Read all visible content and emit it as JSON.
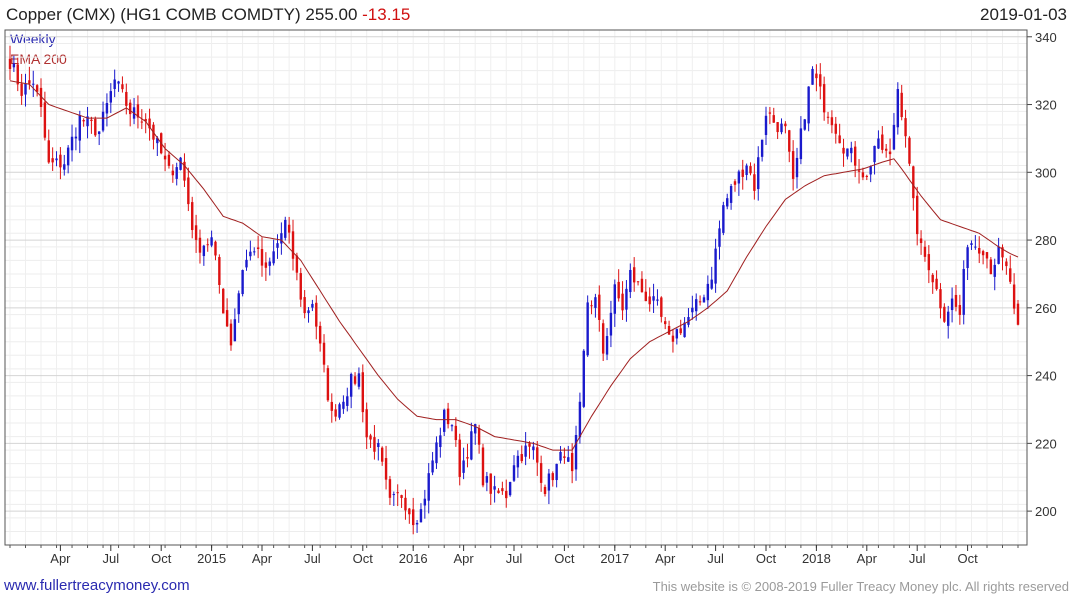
{
  "header": {
    "title": "Copper (CMX) (HG1 COMB COMDTY) 255.00",
    "change": "-13.15",
    "date": "2019-01-03"
  },
  "legend": {
    "weekly": "Weekly",
    "ema": "EMA 200"
  },
  "footer": {
    "site": "www.fullertreacymoney.com",
    "copyright": "This website is © 2008-2019 Fuller Treacy Money plc. All rights reserved"
  },
  "colors": {
    "up": "#1a1acc",
    "down": "#dd1111",
    "ema": "#a02020",
    "grid": "#e2e2e2"
  },
  "chart_data": {
    "type": "candlestick",
    "title": "Copper (CMX) (HG1 COMB COMDTY)",
    "last_value": 255.0,
    "change": -13.15,
    "period": "Weekly",
    "ylim": [
      190,
      342
    ],
    "y_ticks": [
      200,
      220,
      240,
      260,
      280,
      300,
      320,
      340
    ],
    "x_ticks": [
      {
        "label": "Apr",
        "week": 13
      },
      {
        "label": "Jul",
        "week": 26
      },
      {
        "label": "Oct",
        "week": 39
      },
      {
        "label": "2015",
        "week": 52
      },
      {
        "label": "Apr",
        "week": 65
      },
      {
        "label": "Jul",
        "week": 78
      },
      {
        "label": "Oct",
        "week": 91
      },
      {
        "label": "2016",
        "week": 104
      },
      {
        "label": "Apr",
        "week": 117
      },
      {
        "label": "Jul",
        "week": 130
      },
      {
        "label": "Oct",
        "week": 143
      },
      {
        "label": "2017",
        "week": 156
      },
      {
        "label": "Apr",
        "week": 169
      },
      {
        "label": "Jul",
        "week": 182
      },
      {
        "label": "Oct",
        "week": 195
      },
      {
        "label": "2018",
        "week": 208
      },
      {
        "label": "Apr",
        "week": 221
      },
      {
        "label": "Jul",
        "week": 234
      },
      {
        "label": "Oct",
        "week": 247
      }
    ],
    "total_weeks": 261,
    "close_anchors": [
      [
        0,
        333
      ],
      [
        3,
        324
      ],
      [
        6,
        327
      ],
      [
        8,
        318
      ],
      [
        10,
        302
      ],
      [
        14,
        303
      ],
      [
        18,
        316
      ],
      [
        23,
        312
      ],
      [
        27,
        327
      ],
      [
        31,
        318
      ],
      [
        35,
        316
      ],
      [
        38,
        308
      ],
      [
        41,
        300
      ],
      [
        44,
        304
      ],
      [
        48,
        278
      ],
      [
        52,
        280
      ],
      [
        55,
        260
      ],
      [
        57,
        250
      ],
      [
        60,
        272
      ],
      [
        63,
        278
      ],
      [
        66,
        270
      ],
      [
        71,
        285
      ],
      [
        73,
        275
      ],
      [
        76,
        258
      ],
      [
        78,
        262
      ],
      [
        80,
        248
      ],
      [
        83,
        228
      ],
      [
        85,
        232
      ],
      [
        88,
        238
      ],
      [
        90,
        240
      ],
      [
        92,
        222
      ],
      [
        95,
        218
      ],
      [
        98,
        202
      ],
      [
        101,
        205
      ],
      [
        104,
        198
      ],
      [
        106,
        200
      ],
      [
        109,
        215
      ],
      [
        112,
        228
      ],
      [
        114,
        226
      ],
      [
        116,
        212
      ],
      [
        118,
        218
      ],
      [
        120,
        225
      ],
      [
        122,
        210
      ],
      [
        125,
        205
      ],
      [
        128,
        205
      ],
      [
        130,
        215
      ],
      [
        133,
        218
      ],
      [
        135,
        218
      ],
      [
        138,
        207
      ],
      [
        141,
        213
      ],
      [
        143,
        218
      ],
      [
        145,
        210
      ],
      [
        147,
        230
      ],
      [
        149,
        262
      ],
      [
        151,
        262
      ],
      [
        153,
        247
      ],
      [
        156,
        265
      ],
      [
        158,
        260
      ],
      [
        160,
        270
      ],
      [
        163,
        265
      ],
      [
        165,
        262
      ],
      [
        167,
        260
      ],
      [
        170,
        250
      ],
      [
        172,
        253
      ],
      [
        175,
        257
      ],
      [
        178,
        262
      ],
      [
        181,
        270
      ],
      [
        184,
        290
      ],
      [
        187,
        297
      ],
      [
        190,
        303
      ],
      [
        192,
        296
      ],
      [
        195,
        318
      ],
      [
        197,
        315
      ],
      [
        200,
        312
      ],
      [
        202,
        296
      ],
      [
        205,
        318
      ],
      [
        207,
        330
      ],
      [
        210,
        320
      ],
      [
        212,
        316
      ],
      [
        215,
        308
      ],
      [
        217,
        305
      ],
      [
        219,
        302
      ],
      [
        221,
        298
      ],
      [
        223,
        308
      ],
      [
        225,
        307
      ],
      [
        227,
        304
      ],
      [
        229,
        325
      ],
      [
        231,
        312
      ],
      [
        233,
        290
      ],
      [
        235,
        277
      ],
      [
        237,
        273
      ],
      [
        239,
        265
      ],
      [
        241,
        258
      ],
      [
        243,
        262
      ],
      [
        245,
        258
      ],
      [
        247,
        280
      ],
      [
        249,
        279
      ],
      [
        251,
        278
      ],
      [
        253,
        272
      ],
      [
        255,
        276
      ],
      [
        257,
        271
      ],
      [
        258,
        268
      ],
      [
        259,
        258
      ],
      [
        260,
        255
      ]
    ],
    "ema_anchors": [
      [
        0,
        327
      ],
      [
        5,
        326
      ],
      [
        10,
        320
      ],
      [
        15,
        318
      ],
      [
        20,
        316
      ],
      [
        25,
        316
      ],
      [
        30,
        319
      ],
      [
        35,
        315
      ],
      [
        40,
        307
      ],
      [
        45,
        302
      ],
      [
        50,
        295
      ],
      [
        55,
        287
      ],
      [
        60,
        285
      ],
      [
        65,
        281
      ],
      [
        70,
        280
      ],
      [
        75,
        274
      ],
      [
        80,
        265
      ],
      [
        85,
        256
      ],
      [
        90,
        248
      ],
      [
        95,
        240
      ],
      [
        100,
        233
      ],
      [
        105,
        228
      ],
      [
        110,
        227
      ],
      [
        115,
        227
      ],
      [
        120,
        225
      ],
      [
        125,
        222
      ],
      [
        130,
        221
      ],
      [
        135,
        220
      ],
      [
        140,
        218
      ],
      [
        145,
        218
      ],
      [
        150,
        228
      ],
      [
        155,
        237
      ],
      [
        160,
        245
      ],
      [
        165,
        250
      ],
      [
        170,
        253
      ],
      [
        175,
        256
      ],
      [
        180,
        260
      ],
      [
        185,
        265
      ],
      [
        190,
        275
      ],
      [
        195,
        284
      ],
      [
        200,
        292
      ],
      [
        205,
        296
      ],
      [
        210,
        299
      ],
      [
        215,
        300
      ],
      [
        220,
        301
      ],
      [
        225,
        303
      ],
      [
        228,
        304
      ],
      [
        230,
        301
      ],
      [
        235,
        293
      ],
      [
        240,
        286
      ],
      [
        245,
        284
      ],
      [
        250,
        282
      ],
      [
        255,
        278
      ],
      [
        258,
        276
      ],
      [
        260,
        275
      ]
    ]
  }
}
